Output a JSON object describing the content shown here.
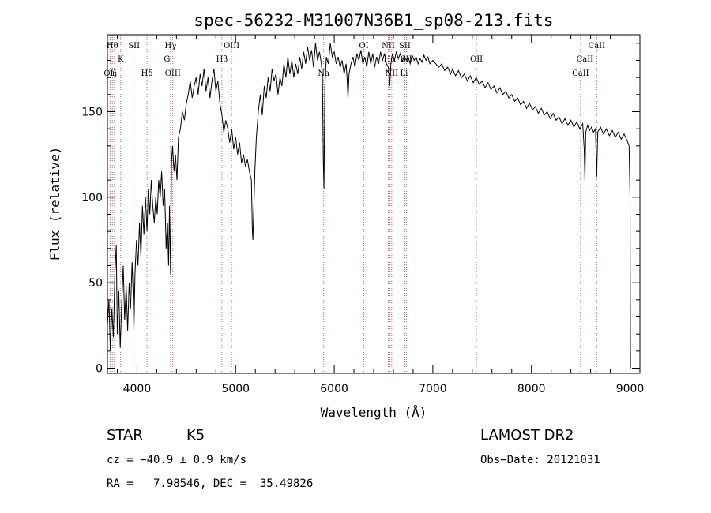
{
  "chart_data": {
    "type": "line",
    "title": "spec-56232-M31007N36B1_sp08-213.fits",
    "xlabel": "Wavelength (Å)",
    "ylabel": "Flux (relative)",
    "xlim": [
      3700,
      9100
    ],
    "ylim": [
      -3,
      195
    ],
    "x_ticks": [
      4000,
      5000,
      6000,
      7000,
      8000,
      9000
    ],
    "y_ticks": [
      0,
      50,
      100,
      150
    ],
    "grid": false,
    "series": [
      {
        "points": [
          [
            3700,
            25
          ],
          [
            3715,
            40
          ],
          [
            3730,
            10
          ],
          [
            3745,
            35
          ],
          [
            3760,
            18
          ],
          [
            3775,
            55
          ],
          [
            3790,
            72
          ],
          [
            3800,
            20
          ],
          [
            3815,
            45
          ],
          [
            3830,
            12
          ],
          [
            3845,
            38
          ],
          [
            3860,
            60
          ],
          [
            3875,
            28
          ],
          [
            3890,
            48
          ],
          [
            3905,
            22
          ],
          [
            3920,
            50
          ],
          [
            3935,
            35
          ],
          [
            3950,
            62
          ],
          [
            3960,
            45
          ],
          [
            3968,
            22
          ],
          [
            3980,
            55
          ],
          [
            3995,
            75
          ],
          [
            4010,
            60
          ],
          [
            4025,
            85
          ],
          [
            4040,
            65
          ],
          [
            4055,
            95
          ],
          [
            4070,
            78
          ],
          [
            4085,
            100
          ],
          [
            4101,
            80
          ],
          [
            4115,
            105
          ],
          [
            4130,
            90
          ],
          [
            4145,
            110
          ],
          [
            4160,
            95
          ],
          [
            4175,
            85
          ],
          [
            4190,
            100
          ],
          [
            4205,
            90
          ],
          [
            4220,
            110
          ],
          [
            4235,
            100
          ],
          [
            4250,
            115
          ],
          [
            4265,
            95
          ],
          [
            4280,
            105
          ],
          [
            4295,
            70
          ],
          [
            4310,
            85
          ],
          [
            4320,
            60
          ],
          [
            4330,
            95
          ],
          [
            4340,
            55
          ],
          [
            4350,
            120
          ],
          [
            4360,
            130
          ],
          [
            4375,
            115
          ],
          [
            4390,
            125
          ],
          [
            4405,
            110
          ],
          [
            4420,
            135
          ],
          [
            4440,
            140
          ],
          [
            4460,
            150
          ],
          [
            4480,
            145
          ],
          [
            4500,
            155
          ],
          [
            4520,
            160
          ],
          [
            4540,
            168
          ],
          [
            4560,
            158
          ],
          [
            4580,
            165
          ],
          [
            4600,
            170
          ],
          [
            4620,
            160
          ],
          [
            4640,
            172
          ],
          [
            4660,
            165
          ],
          [
            4680,
            175
          ],
          [
            4700,
            162
          ],
          [
            4720,
            170
          ],
          [
            4740,
            158
          ],
          [
            4760,
            168
          ],
          [
            4780,
            175
          ],
          [
            4800,
            162
          ],
          [
            4820,
            168
          ],
          [
            4840,
            155
          ],
          [
            4861,
            148
          ],
          [
            4880,
            138
          ],
          [
            4900,
            145
          ],
          [
            4920,
            140
          ],
          [
            4940,
            132
          ],
          [
            4960,
            140
          ],
          [
            4980,
            128
          ],
          [
            5000,
            135
          ],
          [
            5020,
            125
          ],
          [
            5040,
            132
          ],
          [
            5060,
            120
          ],
          [
            5080,
            125
          ],
          [
            5100,
            118
          ],
          [
            5120,
            122
          ],
          [
            5140,
            115
          ],
          [
            5160,
            110
          ],
          [
            5170,
            80
          ],
          [
            5175,
            75
          ],
          [
            5185,
            95
          ],
          [
            5195,
            115
          ],
          [
            5210,
            135
          ],
          [
            5230,
            150
          ],
          [
            5250,
            160
          ],
          [
            5270,
            148
          ],
          [
            5290,
            165
          ],
          [
            5310,
            158
          ],
          [
            5330,
            170
          ],
          [
            5350,
            162
          ],
          [
            5370,
            175
          ],
          [
            5390,
            168
          ],
          [
            5410,
            172
          ],
          [
            5430,
            160
          ],
          [
            5450,
            170
          ],
          [
            5470,
            165
          ],
          [
            5490,
            178
          ],
          [
            5510,
            170
          ],
          [
            5530,
            182
          ],
          [
            5550,
            172
          ],
          [
            5570,
            180
          ],
          [
            5590,
            170
          ],
          [
            5610,
            178
          ],
          [
            5630,
            172
          ],
          [
            5650,
            182
          ],
          [
            5670,
            175
          ],
          [
            5690,
            185
          ],
          [
            5710,
            178
          ],
          [
            5730,
            188
          ],
          [
            5750,
            180
          ],
          [
            5770,
            186
          ],
          [
            5790,
            176
          ],
          [
            5810,
            190
          ],
          [
            5830,
            180
          ],
          [
            5850,
            185
          ],
          [
            5870,
            178
          ],
          [
            5880,
            172
          ],
          [
            5890,
            120
          ],
          [
            5896,
            105
          ],
          [
            5905,
            165
          ],
          [
            5920,
            182
          ],
          [
            5940,
            178
          ],
          [
            5960,
            190
          ],
          [
            5980,
            182
          ],
          [
            6000,
            185
          ],
          [
            6020,
            178
          ],
          [
            6040,
            182
          ],
          [
            6060,
            176
          ],
          [
            6080,
            180
          ],
          [
            6100,
            172
          ],
          [
            6120,
            178
          ],
          [
            6130,
            170
          ],
          [
            6140,
            158
          ],
          [
            6150,
            172
          ],
          [
            6170,
            178
          ],
          [
            6190,
            182
          ],
          [
            6210,
            176
          ],
          [
            6230,
            184
          ],
          [
            6250,
            180
          ],
          [
            6270,
            186
          ],
          [
            6290,
            178
          ],
          [
            6310,
            182
          ],
          [
            6330,
            176
          ],
          [
            6350,
            185
          ],
          [
            6370,
            178
          ],
          [
            6390,
            184
          ],
          [
            6410,
            176
          ],
          [
            6430,
            182
          ],
          [
            6450,
            178
          ],
          [
            6470,
            185
          ],
          [
            6490,
            180
          ],
          [
            6510,
            184
          ],
          [
            6530,
            178
          ],
          [
            6550,
            176
          ],
          [
            6563,
            165
          ],
          [
            6575,
            178
          ],
          [
            6590,
            184
          ],
          [
            6610,
            180
          ],
          [
            6630,
            185
          ],
          [
            6650,
            181
          ],
          [
            6670,
            184
          ],
          [
            6690,
            179
          ],
          [
            6710,
            183
          ],
          [
            6730,
            180
          ],
          [
            6750,
            182
          ],
          [
            6770,
            178
          ],
          [
            6790,
            183
          ],
          [
            6810,
            180
          ],
          [
            6830,
            182
          ],
          [
            6850,
            178
          ],
          [
            6870,
            181
          ],
          [
            6890,
            179
          ],
          [
            6910,
            183
          ],
          [
            6930,
            180
          ],
          [
            6950,
            182
          ],
          [
            6970,
            178
          ],
          [
            7000,
            180
          ],
          [
            7030,
            178
          ],
          [
            7060,
            176
          ],
          [
            7090,
            178
          ],
          [
            7120,
            174
          ],
          [
            7150,
            176
          ],
          [
            7180,
            172
          ],
          [
            7200,
            175
          ],
          [
            7230,
            171
          ],
          [
            7260,
            174
          ],
          [
            7290,
            170
          ],
          [
            7320,
            172
          ],
          [
            7350,
            168
          ],
          [
            7380,
            171
          ],
          [
            7410,
            167
          ],
          [
            7440,
            170
          ],
          [
            7470,
            166
          ],
          [
            7500,
            168
          ],
          [
            7530,
            164
          ],
          [
            7560,
            167
          ],
          [
            7590,
            163
          ],
          [
            7620,
            165
          ],
          [
            7650,
            161
          ],
          [
            7680,
            164
          ],
          [
            7710,
            160
          ],
          [
            7740,
            162
          ],
          [
            7770,
            158
          ],
          [
            7800,
            160
          ],
          [
            7830,
            156
          ],
          [
            7860,
            158
          ],
          [
            7890,
            154
          ],
          [
            7920,
            156
          ],
          [
            7950,
            152
          ],
          [
            7980,
            155
          ],
          [
            8010,
            151
          ],
          [
            8040,
            153
          ],
          [
            8070,
            149
          ],
          [
            8100,
            152
          ],
          [
            8130,
            148
          ],
          [
            8160,
            150
          ],
          [
            8190,
            146
          ],
          [
            8220,
            149
          ],
          [
            8250,
            145
          ],
          [
            8280,
            147
          ],
          [
            8310,
            143
          ],
          [
            8340,
            146
          ],
          [
            8370,
            142
          ],
          [
            8400,
            145
          ],
          [
            8430,
            141
          ],
          [
            8460,
            144
          ],
          [
            8490,
            140
          ],
          [
            8520,
            143
          ],
          [
            8535,
            128
          ],
          [
            8542,
            110
          ],
          [
            8550,
            138
          ],
          [
            8570,
            142
          ],
          [
            8590,
            139
          ],
          [
            8610,
            141
          ],
          [
            8630,
            138
          ],
          [
            8650,
            140
          ],
          [
            8662,
            112
          ],
          [
            8672,
            138
          ],
          [
            8700,
            141
          ],
          [
            8730,
            137
          ],
          [
            8760,
            140
          ],
          [
            8790,
            136
          ],
          [
            8820,
            139
          ],
          [
            8850,
            135
          ],
          [
            8880,
            138
          ],
          [
            8910,
            134
          ],
          [
            8940,
            137
          ],
          [
            8970,
            133
          ],
          [
            8990,
            130
          ],
          [
            9000,
            100
          ],
          [
            9005,
            0
          ]
        ]
      }
    ],
    "line_markers": [
      {
        "wavelength": 3727,
        "label": "OII",
        "row": 3
      },
      {
        "wavelength": 3750,
        "label": "Hθ",
        "row": 1
      },
      {
        "wavelength": 3771,
        "label": "η",
        "row": 3
      },
      {
        "wavelength": 3834,
        "label": "K",
        "row": 2
      },
      {
        "wavelength": 3970,
        "label": "SII",
        "row": 1
      },
      {
        "wavelength": 4101,
        "label": "Hδ",
        "row": 3
      },
      {
        "wavelength": 4304,
        "label": "G",
        "row": 2
      },
      {
        "wavelength": 4340,
        "label": "Hγ",
        "row": 1
      },
      {
        "wavelength": 4363,
        "label": "OIII",
        "row": 3
      },
      {
        "wavelength": 4861,
        "label": "Hβ",
        "row": 2
      },
      {
        "wavelength": 4959,
        "label": "OIII",
        "row": 1
      },
      {
        "wavelength": 5893,
        "label": "Na",
        "row": 3
      },
      {
        "wavelength": 6300,
        "label": "OI",
        "row": 1
      },
      {
        "wavelength": 6548,
        "label": "NII",
        "row": 1
      },
      {
        "wavelength": 6563,
        "label": "Hα",
        "row": 2
      },
      {
        "wavelength": 6583,
        "label": "NII",
        "row": 3
      },
      {
        "wavelength": 6716,
        "label": "SII",
        "row": 1
      },
      {
        "wavelength": 6731,
        "label": "SII",
        "row": 2
      },
      {
        "wavelength": 6708,
        "label": "Li",
        "row": 3
      },
      {
        "wavelength": 7442,
        "label": "OII",
        "row": 2
      },
      {
        "wavelength": 8498,
        "label": "CaII",
        "row": 3
      },
      {
        "wavelength": 8542,
        "label": "CaII",
        "row": 2
      },
      {
        "wavelength": 8662,
        "label": "CaII",
        "row": 1
      }
    ]
  },
  "info": {
    "object_class": "STAR",
    "subclass": "K5",
    "survey": "LAMOST DR2",
    "cz": "cz = −40.9 ± 0.9 km/s",
    "obs_date": "Obs−Date: 20121031",
    "coords": "RA =   7.98546, DEC =  35.49826"
  },
  "colors": {
    "spectrum": "#000000",
    "marker_line": "#d04040",
    "axis": "#000000"
  }
}
